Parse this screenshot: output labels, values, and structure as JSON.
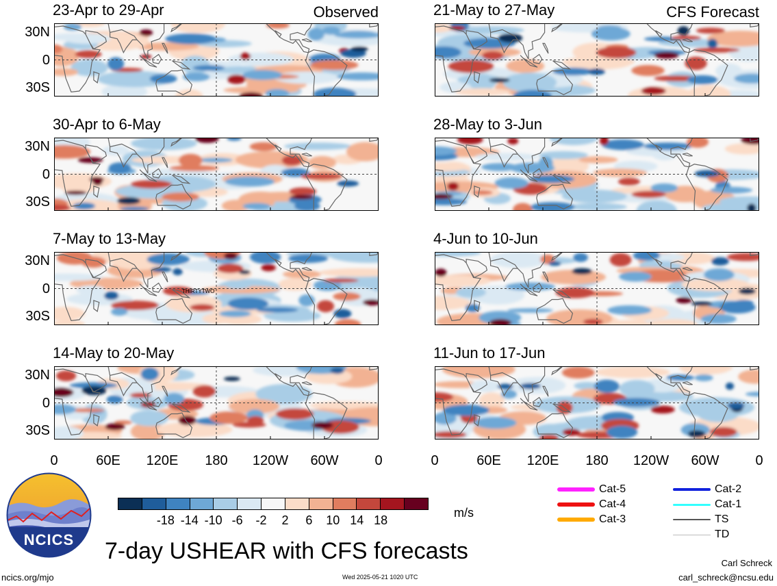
{
  "panels_left": [
    {
      "title": "23-Apr to 29-Apr",
      "tag": "Observed",
      "seed": 3
    },
    {
      "title": "30-Apr to 6-May",
      "tag": "",
      "seed": 11
    },
    {
      "title": "7-May to 13-May",
      "tag": "",
      "seed": 19,
      "annotation": "THIRTYTWO"
    },
    {
      "title": "14-May to 20-May",
      "tag": "",
      "seed": 27
    }
  ],
  "panels_right": [
    {
      "title": "21-May to 27-May",
      "tag": "CFS Forecast",
      "seed": 35
    },
    {
      "title": "28-May to 3-Jun",
      "tag": "",
      "seed": 43
    },
    {
      "title": "4-Jun to 10-Jun",
      "tag": "",
      "seed": 51
    },
    {
      "title": "11-Jun to 17-Jun",
      "tag": "",
      "seed": 59
    }
  ],
  "lat_labels": [
    "30N",
    "0",
    "30S"
  ],
  "lon_labels": [
    "0",
    "60E",
    "120E",
    "180",
    "120W",
    "60W",
    "0"
  ],
  "colorbar": {
    "colors": [
      "#0b2f55",
      "#1f5d9b",
      "#3f83c0",
      "#6ea8d6",
      "#a9cde6",
      "#dbe9f3",
      "#f7f7f7",
      "#fbdcc8",
      "#f2b293",
      "#e07d5f",
      "#c4473c",
      "#a5151f",
      "#67001f"
    ],
    "labels": [
      "-18",
      "-14",
      "-10",
      "-6",
      "-2",
      "2",
      "6",
      "10",
      "14",
      "18"
    ],
    "units": "m/s"
  },
  "legend": [
    {
      "label": "Cat-5",
      "color": "#ff22ff",
      "width": 6
    },
    {
      "label": "Cat-4",
      "color": "#ee1111",
      "width": 6
    },
    {
      "label": "Cat-3",
      "color": "#ffaa00",
      "width": 6
    },
    {
      "label": "Cat-2",
      "color": "#1122dd",
      "width": 4
    },
    {
      "label": "Cat-1",
      "color": "#33ffff",
      "width": 3
    },
    {
      "label": "TS",
      "color": "#555555",
      "width": 2
    },
    {
      "label": "TD",
      "color": "#bbbbbb",
      "width": 1
    }
  ],
  "logo_text": "NCICS",
  "main_title": "7-day USHEAR with CFS forecasts",
  "footer": {
    "left_url": "ncics.org/mjo",
    "timestamp": "Wed 2025-05-21 1020 UTC",
    "author": "Carl Schreck",
    "email": "carl_schreck@ncsu.edu"
  }
}
